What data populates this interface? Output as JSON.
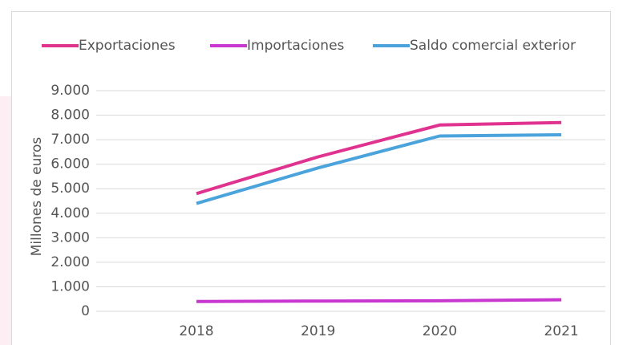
{
  "chart_data": {
    "type": "line",
    "categories": [
      "2018",
      "2019",
      "2020",
      "2021"
    ],
    "series": [
      {
        "name": "Exportaciones",
        "color": "#e0338f",
        "values": [
          4800,
          6300,
          7600,
          7700
        ]
      },
      {
        "name": "Importaciones",
        "color": "#c837d0",
        "values": [
          400,
          420,
          430,
          470
        ]
      },
      {
        "name": "Saldo comercial exterior",
        "color": "#4ba3dc",
        "values": [
          4400,
          5850,
          7150,
          7200
        ]
      }
    ],
    "ylabel": "Millones de euros",
    "ylim": [
      0,
      9000
    ],
    "yticks": [
      0,
      {
        "value": 1000,
        "label": "1.000"
      },
      {
        "value": 2000,
        "label": "2.000"
      },
      {
        "value": 3000,
        "label": "3.000"
      },
      {
        "value": 4000,
        "label": "4.000"
      },
      {
        "value": 5000,
        "label": "5.000"
      },
      {
        "value": 6000,
        "label": "6.000"
      },
      {
        "value": 7000,
        "label": "7.000"
      },
      {
        "value": 8000,
        "label": "8.000"
      },
      {
        "value": 9000,
        "label": "9.000"
      }
    ],
    "grid": true,
    "legend": "top"
  }
}
